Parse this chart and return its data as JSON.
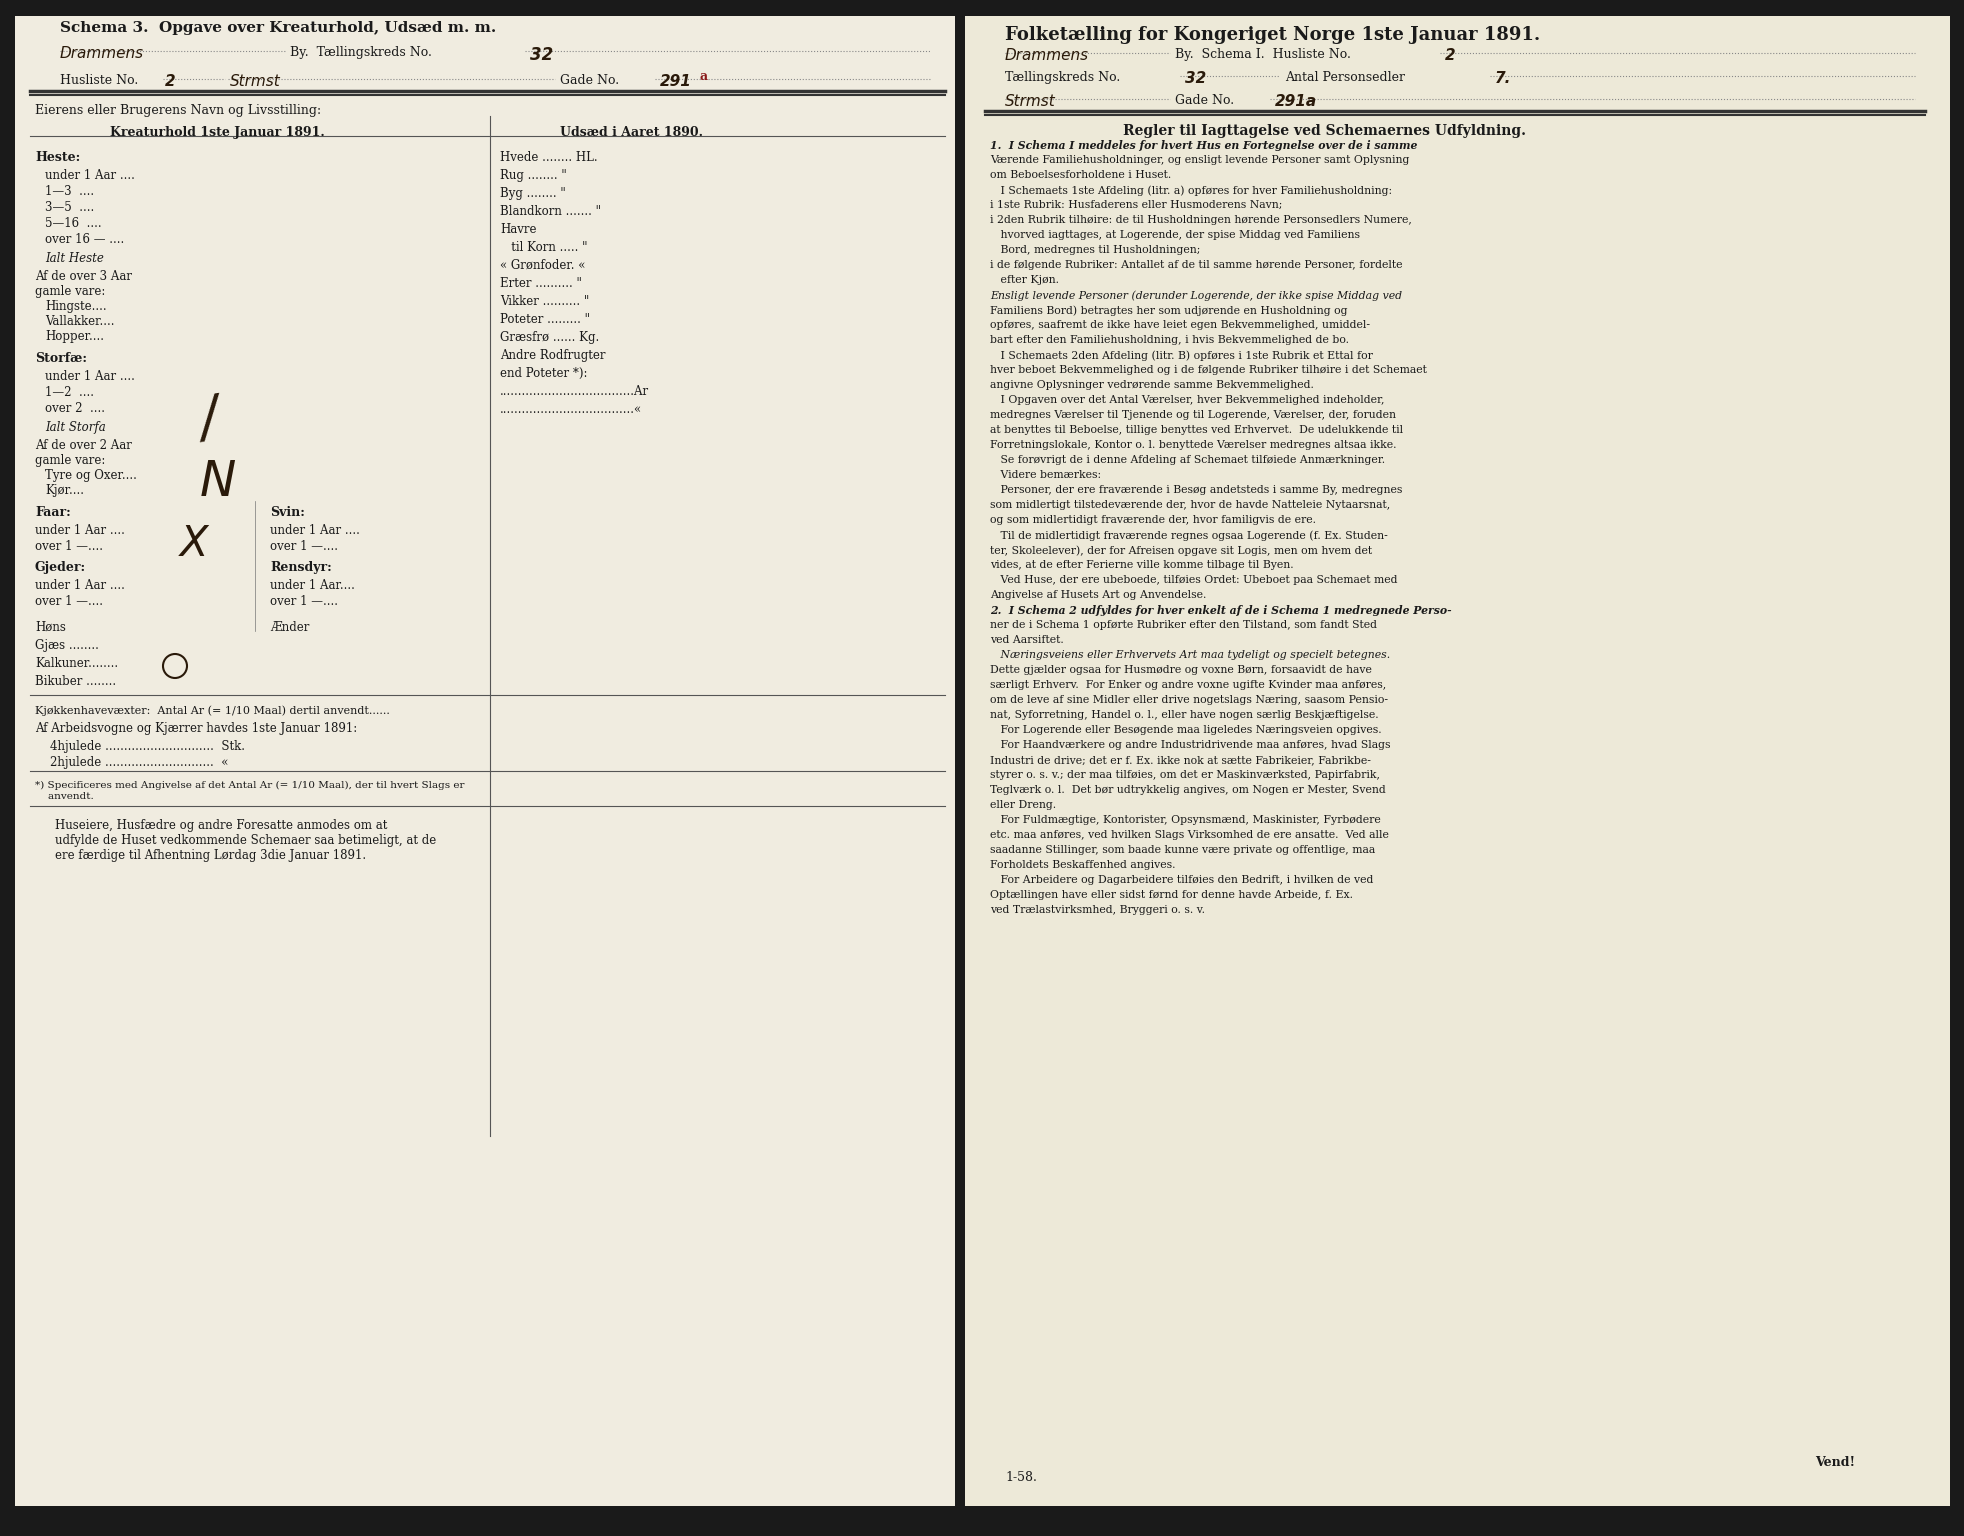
{
  "background_color": "#e8e4d0",
  "page_color": "#f0ece0",
  "dark_border": "#1a1a1a",
  "text_color": "#1a1a1a",
  "handwriting_color": "#2a1a0a",
  "red_handwriting": "#8b1a1a",
  "left_page": {
    "title": "Schema 3.  Opgave over Kreaturhold, Udsæd m. m.",
    "line1_printed": "By.  Tællingskreds No.",
    "line1_handwritten": "Drammens",
    "line1_number": "32",
    "line2_printed1": "Husliste No.",
    "line2_hw1": "2",
    "line2_printed2": "Gade No.",
    "line2_hw2": "Strmst",
    "line2_hw3": "291a",
    "separator_label": "Eierens eller Brugerens Navn og Livsstilling:",
    "col1_title": "Kreaturhold 1ste Januar 1891.",
    "col2_title": "Udsæd i Aaret 1890.",
    "heste_label": "Heste:",
    "heste_rows": [
      "under 1 Aar ....",
      "1—3  ....",
      "3—5  ....",
      "5—16  ....",
      "over 16 — ...."
    ],
    "ialt_heste": "Ialt Heste",
    "af_over_3": "Af de over 3 Aar",
    "gamle_vare": "gamle vare:",
    "hingste": "Hingste....",
    "vallakker": "Vallakker....",
    "hopper": "Hopper....",
    "storfe_label": "Storfæ:",
    "storfe_rows": [
      "under 1 Aar ....",
      "1—2  ....",
      "over 2  ...."
    ],
    "ialt_storfe": "Ialt Storfa",
    "af_over_2": "Af de over 2 Aar",
    "gamle_vare2": "gamle vare:",
    "tyre": "Tyre og Oxer....",
    "kjor": "Kjør....",
    "faar_label": "Faar:",
    "faar_rows": [
      "under 1 Aar ....",
      "over 1 —...."
    ],
    "gjeder_label": "Gjeder:",
    "gjeder_rows": [
      "under 1 Aar ....",
      "over 1 —...."
    ],
    "svin_label": "Svin:",
    "svin_rows": [
      "under 1 Aar ....",
      "over 1 —...."
    ],
    "rensdyr_label": "Rensdyr:",
    "rensdyr_rows": [
      "under 1 Aar....",
      "over 1 —...."
    ],
    "hons": "Høns",
    "ænder": "Ænder",
    "gjæs": "Gjæs ........",
    "kalkuner": "Kalkuner........",
    "bikuber": "Bikuber ........",
    "udsæd_rows": [
      "Hvede ........ HL.",
      "Rug ........ \"",
      "Byg ........ \"",
      "Blandkorn ....... \"",
      "Havre",
      "   til Korn ..... \"",
      "« Grønfoder. «",
      "Erter .......... \"",
      "Vikker .......... \"",
      "Poteter ......... \"",
      "Græsfrø ...... Kg.",
      "Andre Rodfrugter",
      "end Poteter *):",
      "....................................Ar",
      "....................................«"
    ],
    "kjokken": "Kjøkkenhavevæxter:  Antal Ar (= 1/10 Maal) dertil anvendt......",
    "arbeid1": "Af Arbeidsvogne og Kjærrer havdes 1ste Januar 1891:",
    "arbeid2": "4hjulede .............................  Stk.",
    "arbeid3": "2hjulede .............................  «",
    "footnote": "*) Specificeres med Angivelse af det Antal Ar (= 1/10 Maal), der til hvert Slags er\n    anvendt.",
    "bottom_text": "Huseiere, Husfædre og andre Foresatte anmodes om at\nudfylde de Huset vedkommende Schemaer saa betimeligt, at de\nere færdige til Afhentning Lørdag 3die Januar 1891."
  },
  "right_page": {
    "title": "Folketælling for Kongeriget Norge 1ste Januar 1891.",
    "line1_printed": "By.  Schema I.  Husliste No.",
    "line1_hw1": "Drammens",
    "line1_hw2": "2",
    "line2_printed": "Tællingskreds No.",
    "line2_hw1": "32",
    "line2_printed2": "Antal Personsedler",
    "line2_hw2": "7.",
    "line3_hw": "Strmst",
    "line3_printed": "Gade No.",
    "line3_hw2": "291a",
    "rules_title": "Regler til Iagttagelse ved Schemaernes Udfyldning.",
    "rules_text": [
      "1.  I Schema I meddeles for hvert Hus en Fortegnelse over de i samme",
      "Værende Familiehusholdninger, og ensligt levende Personer samt Oplysning",
      "om Beboelsesforholdene i Huset.",
      "   I Schemaets 1ste Afdeling (litr. a) opføres for hver Familiehusholdning:",
      "i 1ste Rubrik: Husfaderens eller Husmoderens Navn;",
      "i 2den Rubrik tilhøire: de til Husholdningen hørende Personsedlers Numere,",
      "   hvorved iagttages, at Logerende, der spise Middag ved Familiens",
      "   Bord, medregnes til Husholdningen;",
      "i de følgende Rubriker: Antallet af de til samme hørende Personer, fordelte",
      "   efter Kjøn.",
      "Ensligt levende Personer (derunder Logerende, der ikke spise Middag ved",
      "Familiens Bord) betragtes her som udjørende en Husholdning og",
      "opføres, saafremt de ikke have leiet egen Bekvemmelighed, umiddel-",
      "bart efter den Familiehusholdning, i hvis Bekvemmelighed de bo.",
      "   I Schemaets 2den Afdeling (litr. B) opføres i 1ste Rubrik et Ettal for",
      "hver beboet Bekvemmelighed og i de følgende Rubriker tilhøire i det Schemaet",
      "angivne Oplysninger vedrørende samme Bekvemmelighed.",
      "   I Opgaven over det Antal Værelser, hver Bekvemmelighed indeholder,",
      "medregnes Værelser til Tjenende og til Logerende, Værelser, der, foruden",
      "at benyttes til Beboelse, tillige benyttes ved Erhvervet.  De udelukkende til",
      "Forretningslokale, Kontor o. l. benyttede Værelser medregnes altsaa ikke.",
      "   Se forøvrigt de i denne Afdeling af Schemaet tilføiede Anmærkninger.",
      "   Videre bemærkes:",
      "   Personer, der ere fraværende i Besøg andetsteds i samme By, medregnes",
      "som midlertigt tilstedeværende der, hvor de havde Natteleie Nytaarsnat,",
      "og som midlertidigt fraværende der, hvor familigvis de ere.",
      "   Til de midlertidigt fraværende regnes ogsaa Logerende (f. Ex. Studen-",
      "ter, Skoleelever), der for Afreisen opgave sit Logis, men om hvem det",
      "vides, at de efter Ferierne ville komme tilbage til Byen.",
      "   Ved Huse, der ere ubeboede, tilføies Ordet: Ubeboet paa Schemaet med",
      "Angivelse af Husets Art og Anvendelse.",
      "2.  I Schema 2 udfyldes for hver enkelt af de i Schema 1 medregnede Perso-",
      "ner de i Schema 1 opførte Rubriker efter den Tilstand, som fandt Sted",
      "ved Aarsiftet.",
      "   Næringsveiens eller Erhvervets Art maa tydeligt og specielt betegnes.",
      "Dette gjælder ogsaa for Husmødre og voxne Børn, forsaavidt de have",
      "særligt Erhverv.  For Enker og andre voxne ugifte Kvinder maa anføres,",
      "om de leve af sine Midler eller drive nogetslags Næring, saasom Pensio-",
      "nat, Syforretning, Handel o. l., eller have nogen særlig Beskjæftigelse.",
      "   For Logerende eller Besøgende maa ligeledes Næringsveien opgives.",
      "   For Haandværkere og andre Industridrivende maa anføres, hvad Slags",
      "Industri de drive; det er f. Ex. ikke nok at sætte Fabrikeier, Fabrikbe-",
      "styrer o. s. v.; der maa tilføies, om det er Maskinværksted, Papirfabrik,",
      "Teglværk o. l.  Det bør udtrykkelig angives, om Nogen er Mester, Svend",
      "eller Dreng.",
      "   For Fuldmægtige, Kontorister, Opsynsmænd, Maskinister, Fyrbødere",
      "etc. maa anføres, ved hvilken Slags Virksomhed de ere ansatte.  Ved alle",
      "saadanne Stillinger, som baade kunne være private og offentlige, maa",
      "Forholdets Beskaffenhed angives.",
      "   For Arbeidere og Dagarbeidere tilføies den Bedrift, i hvilken de ved",
      "Optællingen have eller sidst førnd for denne havde Arbeide, f. Ex.",
      "ved Trælastvirksmhed, Bryggeri o. s. v."
    ],
    "bottom_note": "Vend!",
    "bottom_number": "1-58."
  }
}
